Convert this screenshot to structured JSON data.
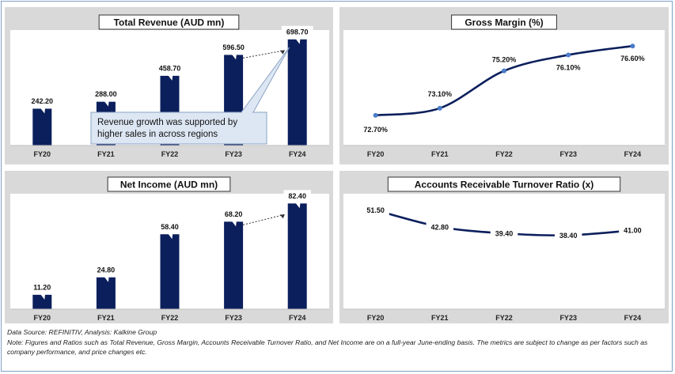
{
  "chart_data": [
    {
      "type": "bar",
      "title": "Total Revenue (AUD mn)",
      "categories": [
        "FY20",
        "FY21",
        "FY22",
        "FY23",
        "FY24"
      ],
      "values": [
        242.2,
        288.0,
        458.7,
        596.5,
        698.7
      ],
      "labels": [
        "242.20",
        "288.00",
        "458.70",
        "596.50",
        "698.70"
      ],
      "ylim": [
        0,
        760
      ],
      "bar_color": "#0b1f5c",
      "annotation": "Revenue growth was supported by higher sales in across regions"
    },
    {
      "type": "line",
      "title": "Gross Margin (%)",
      "categories": [
        "FY20",
        "FY21",
        "FY22",
        "FY23",
        "FY24"
      ],
      "values": [
        72.7,
        73.1,
        75.2,
        76.1,
        76.6
      ],
      "labels": [
        "72.70%",
        "73.10%",
        "75.20%",
        "76.10%",
        "76.60%"
      ],
      "ylim": [
        71.0,
        77.5
      ],
      "line_color": "#0b1f5c",
      "marker_color": "#4a7cc9"
    },
    {
      "type": "bar",
      "title": "Net Income (AUD mn)",
      "categories": [
        "FY20",
        "FY21",
        "FY22",
        "FY23",
        "FY24"
      ],
      "values": [
        11.2,
        24.8,
        58.4,
        68.2,
        82.4
      ],
      "labels": [
        "11.20",
        "24.80",
        "58.40",
        "68.20",
        "82.40"
      ],
      "ylim": [
        0,
        90
      ],
      "bar_color": "#0b1f5c"
    },
    {
      "type": "line",
      "title": "Accounts Receivable Turnover Ratio (x)",
      "categories": [
        "FY20",
        "FY21",
        "FY22",
        "FY23",
        "FY24"
      ],
      "values": [
        51.5,
        42.8,
        39.4,
        38.4,
        41.0
      ],
      "labels": [
        "51.50",
        "42.80",
        "39.40",
        "38.40",
        "41.00"
      ],
      "ylim": [
        0,
        60
      ],
      "line_color": "#0b1f5c",
      "marker_color": "#4a7cc9"
    }
  ],
  "footer": {
    "source": "Data Source: REFINITIV, Analysis: Kalkine Group",
    "note": "Note: Figures and Ratios such as Total Revenue, Gross Margin, Accounts Receivable Turnover Ratio, and Net Income  are on a full-year June-ending basis. The metrics are subject to change as per factors such as company performance, and price changes etc."
  }
}
